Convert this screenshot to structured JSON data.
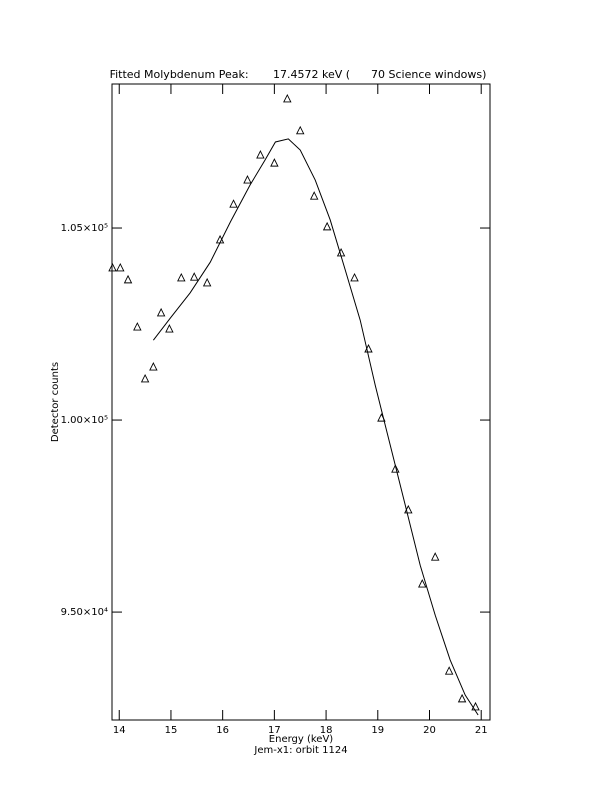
{
  "chart_data": {
    "type": "scatter",
    "title": "Fitted Molybdenum Peak:       17.4572 keV (      70 Science windows)",
    "x_label": "Energy (keV)",
    "subtitle": "Jem-x1: orbit 1124",
    "y_label": "Detector counts",
    "xlim": [
      13.86,
      21.17
    ],
    "xticks": [
      14,
      15,
      16,
      17,
      18,
      19,
      20,
      21
    ],
    "ylim": [
      92190,
      108750
    ],
    "yticks": [
      {
        "value": 95000,
        "label": "9.50×10⁴"
      },
      {
        "value": 100000,
        "label": "1.00×10⁵"
      },
      {
        "value": 105000,
        "label": "1.05×10⁵"
      }
    ],
    "points": {
      "x": [
        13.87,
        14.02,
        14.17,
        14.35,
        14.5,
        14.66,
        14.81,
        14.97,
        15.2,
        15.45,
        15.7,
        15.95,
        16.21,
        16.48,
        16.73,
        17.0,
        17.25,
        17.5,
        17.77,
        18.02,
        18.29,
        18.55,
        18.82,
        19.07,
        19.34,
        19.59,
        19.86,
        20.11,
        20.38,
        20.63,
        20.89
      ],
      "y": [
        103960,
        103960,
        103650,
        102420,
        101070,
        101380,
        102790,
        102370,
        103700,
        103720,
        103570,
        104690,
        105620,
        106250,
        106900,
        106690,
        108360,
        107530,
        105830,
        105030,
        104350,
        103700,
        101850,
        100050,
        98720,
        97660,
        95730,
        96430,
        93460,
        92740,
        92530
      ]
    },
    "fit": {
      "x": [
        14.66,
        14.99,
        15.37,
        15.76,
        16.15,
        16.53,
        16.82,
        17.02,
        17.27,
        17.5,
        17.79,
        18.08,
        18.37,
        18.66,
        18.95,
        19.24,
        19.53,
        19.82,
        20.11,
        20.4,
        20.69,
        20.94
      ],
      "y": [
        102080,
        102660,
        103310,
        104110,
        105160,
        106120,
        106770,
        107240,
        107320,
        107030,
        106250,
        105210,
        103910,
        102600,
        100910,
        99350,
        97790,
        96220,
        94920,
        93750,
        92840,
        92320
      ]
    },
    "color": "#000000"
  }
}
